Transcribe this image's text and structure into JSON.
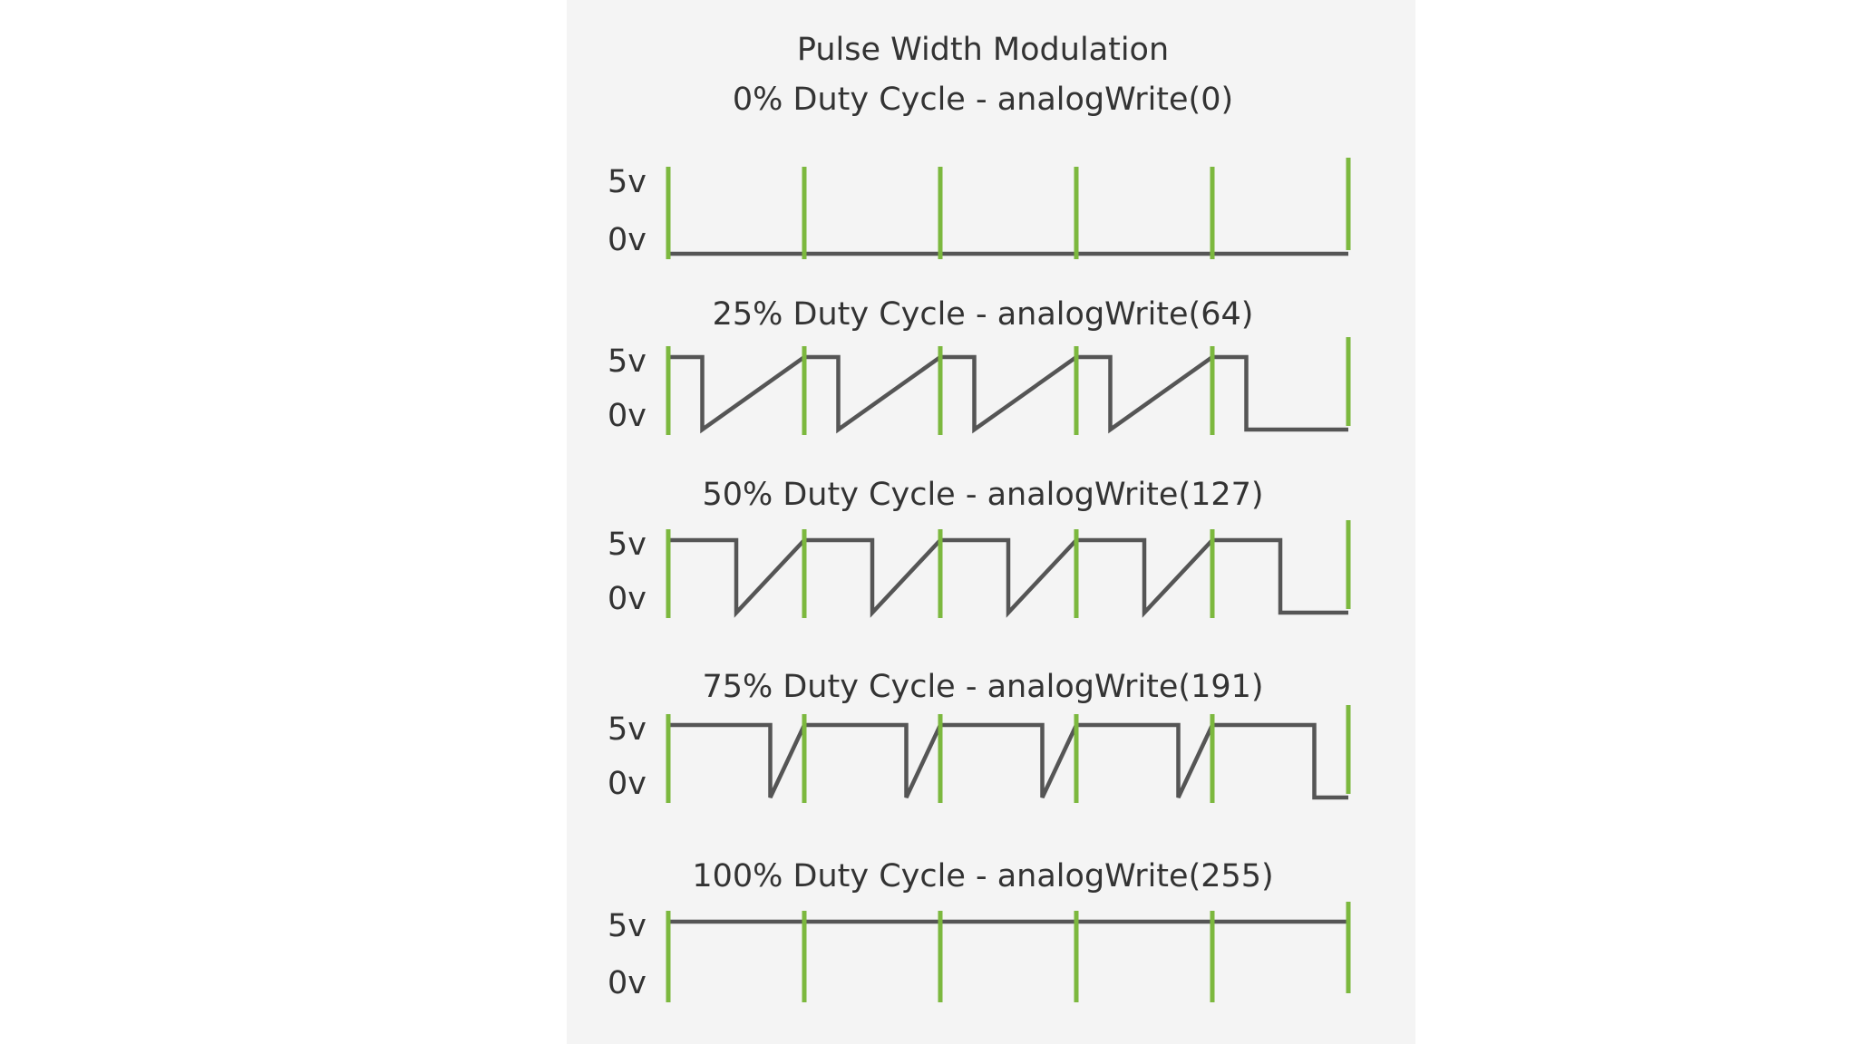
{
  "title": "Pulse Width Modulation",
  "high_label": "5v",
  "low_label": "0v",
  "colors": {
    "background": "#ffffff",
    "panel": "#f4f4f4",
    "waveform": "#555555",
    "period_marker": "#7cb83e",
    "text": "#333333"
  },
  "panels": [
    {
      "heading": "0% Duty Cycle - analogWrite(0)",
      "duty": 0.0,
      "periods": 5
    },
    {
      "heading": "25% Duty Cycle - analogWrite(64)",
      "duty": 0.25,
      "periods": 5
    },
    {
      "heading": "50% Duty Cycle - analogWrite(127)",
      "duty": 0.5,
      "periods": 5
    },
    {
      "heading": "75% Duty Cycle - analogWrite(191)",
      "duty": 0.75,
      "periods": 5
    },
    {
      "heading": "100% Duty Cycle - analogWrite(255)",
      "duty": 1.0,
      "periods": 5
    }
  ]
}
